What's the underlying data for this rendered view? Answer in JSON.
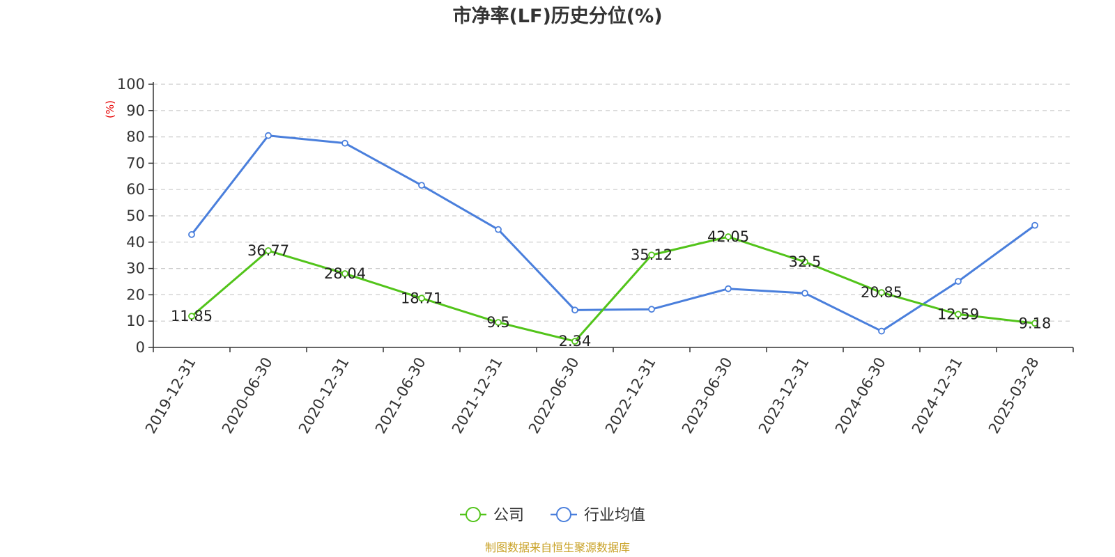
{
  "chart_data": {
    "type": "line",
    "title": "市净率(LF)历史分位(%)",
    "y_unit": "(%)",
    "ylim": [
      0,
      100
    ],
    "y_ticks": [
      0,
      10,
      20,
      30,
      40,
      50,
      60,
      70,
      80,
      90,
      100
    ],
    "grid": true,
    "legend_position": "bottom-center",
    "categories": [
      "2019-12-31",
      "2020-06-30",
      "2020-12-31",
      "2021-06-30",
      "2021-12-31",
      "2022-06-30",
      "2022-12-31",
      "2023-06-30",
      "2023-12-31",
      "2024-06-30",
      "2024-12-31",
      "2025-03-28"
    ],
    "series": [
      {
        "name": "公司",
        "color": "#52c41a",
        "values": [
          11.85,
          36.77,
          28.04,
          18.71,
          9.5,
          2.34,
          35.12,
          42.05,
          32.5,
          20.85,
          12.59,
          9.18
        ],
        "labels": [
          "11.85",
          "36.77",
          "28.04",
          "18.71",
          "9.5",
          "2.34",
          "35.12",
          "42.05",
          "32.5",
          "20.85",
          "12.59",
          "9.18"
        ]
      },
      {
        "name": "行业均值",
        "color": "#4a7fdc",
        "values": [
          42.9,
          80.5,
          77.6,
          61.6,
          44.8,
          14.2,
          14.5,
          22.3,
          20.6,
          6.2,
          25.1,
          46.4
        ]
      }
    ],
    "unit_color": "#e60000"
  },
  "source": {
    "text": "制图数据来自恒生聚源数据库",
    "color": "#c9a227"
  }
}
